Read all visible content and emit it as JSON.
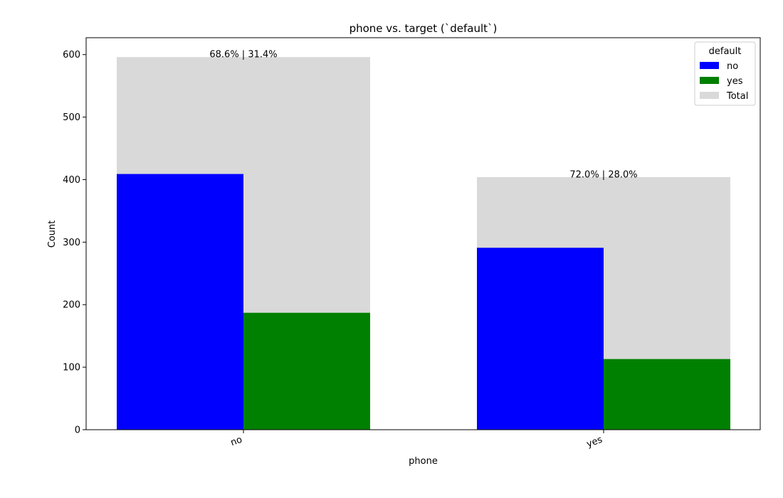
{
  "chart_data": {
    "type": "bar",
    "title": "phone vs. target (`default`)",
    "xlabel": "phone",
    "ylabel": "Count",
    "categories": [
      "no",
      "yes"
    ],
    "ylim": [
      0,
      627
    ],
    "yticks": [
      0,
      100,
      200,
      300,
      400,
      500,
      600
    ],
    "grid": false,
    "series": [
      {
        "name": "no",
        "color": "#0000ff",
        "values": [
          409,
          291
        ]
      },
      {
        "name": "yes",
        "color": "#008000",
        "values": [
          187,
          113
        ]
      },
      {
        "name": "Total",
        "color": "#d9d9d9",
        "values": [
          596,
          404
        ]
      }
    ],
    "annotations": [
      "68.6% | 31.4%",
      "72.0% | 28.0%"
    ],
    "legend": {
      "title": "default",
      "placement": "top-right",
      "entries": [
        "no",
        "yes",
        "Total"
      ]
    }
  }
}
